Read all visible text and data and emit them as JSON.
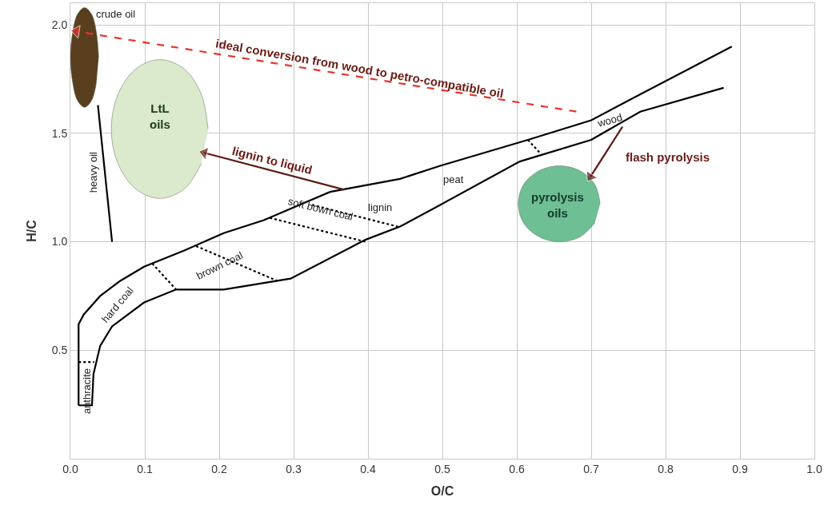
{
  "chart_data": {
    "type": "line",
    "xlabel": "O/C",
    "ylabel": "H/C",
    "xlim": [
      0,
      1.0
    ],
    "ylim": [
      0,
      2.1
    ],
    "xticks": [
      {
        "value": 0,
        "label": "0.0"
      },
      0.1,
      0.2,
      0.3,
      0.4,
      0.5,
      0.6,
      0.7,
      0.8,
      0.9,
      {
        "value": 1.0,
        "label": "1.0"
      }
    ],
    "yticks": [
      0.5,
      {
        "value": 1.0,
        "label": "1.0"
      },
      1.5,
      {
        "value": 2.0,
        "label": "2.0"
      }
    ],
    "grid": true,
    "series": [
      {
        "color": "#000000",
        "line_style": "solid",
        "x": [
          0.011,
          0.011,
          0.018,
          0.04,
          0.067,
          0.099,
          0.153,
          0.206,
          0.26,
          0.349,
          0.443,
          0.497,
          0.615,
          0.7,
          0.766,
          0.889
        ],
        "values": [
          0.246,
          0.62,
          0.665,
          0.75,
          0.82,
          0.885,
          0.96,
          1.04,
          1.1,
          1.23,
          1.29,
          1.35,
          1.47,
          1.56,
          1.68,
          1.9
        ]
      },
      {
        "color": "#000000",
        "line_style": "solid",
        "x": [
          0.011,
          0.029,
          0.031,
          0.04,
          0.056,
          0.099,
          0.142,
          0.206,
          0.278,
          0.296,
          0.397,
          0.443,
          0.497,
          0.604,
          0.7,
          0.766,
          0.878
        ],
        "values": [
          0.246,
          0.246,
          0.39,
          0.52,
          0.61,
          0.72,
          0.78,
          0.78,
          0.82,
          0.83,
          1.01,
          1.07,
          1.17,
          1.37,
          1.47,
          1.6,
          1.71
        ]
      },
      {
        "color": "#000000",
        "line_style": "solid",
        "x": [
          0.037,
          0.056
        ],
        "values": [
          1.63,
          1.0
        ]
      },
      {
        "color": "#000000",
        "line_style": "dotted",
        "x": [
          0.011,
          0.032
        ],
        "values": [
          0.445,
          0.445
        ]
      },
      {
        "color": "#000000",
        "line_style": "dotted",
        "x": [
          0.11,
          0.142
        ],
        "values": [
          0.9,
          0.78
        ]
      },
      {
        "color": "#000000",
        "line_style": "dotted",
        "x": [
          0.169,
          0.278
        ],
        "values": [
          0.98,
          0.82
        ]
      },
      {
        "color": "#000000",
        "line_style": "dotted",
        "x": [
          0.268,
          0.397
        ],
        "values": [
          1.11,
          1.0
        ]
      },
      {
        "color": "#000000",
        "line_style": "dotted",
        "x": [
          0.325,
          0.44
        ],
        "values": [
          1.17,
          1.07
        ]
      },
      {
        "color": "#000000",
        "line_style": "dotted",
        "x": [
          0.615,
          0.631
        ],
        "values": [
          1.47,
          1.41
        ]
      },
      {
        "type": "area",
        "color": "#5a3f1e",
        "x": [
          0.038,
          0.035,
          0.0285,
          0.019,
          0.0095,
          0.003,
          0,
          0.003,
          0.0095,
          0.019,
          0.0285,
          0.035
        ],
        "values": [
          1.85,
          1.965,
          2.049,
          2.08,
          2.049,
          1.965,
          1.85,
          1.735,
          1.651,
          1.62,
          1.651,
          1.735
        ]
      },
      {
        "type": "area",
        "color": "#dbe9cc",
        "x": [
          0.185,
          0.176,
          0.153,
          0.12,
          0.088,
          0.064,
          0.055,
          0.064,
          0.088,
          0.12,
          0.153,
          0.176
        ],
        "values": [
          1.52,
          1.68,
          1.797,
          1.84,
          1.797,
          1.68,
          1.52,
          1.36,
          1.243,
          1.2,
          1.243,
          1.36
        ]
      },
      {
        "type": "area",
        "color": "#6fbf94",
        "x": [
          0.712,
          0.705,
          0.685,
          0.657,
          0.63,
          0.609,
          0.602,
          0.609,
          0.63,
          0.657,
          0.685,
          0.705
        ],
        "values": [
          1.175,
          1.263,
          1.327,
          1.35,
          1.327,
          1.263,
          1.175,
          1.088,
          1.023,
          1.0,
          1.023,
          1.088
        ]
      },
      {
        "color": "#e8332a",
        "line_style": "dashed",
        "marker": "triangle",
        "x": [
          0.68,
          0.008
        ],
        "values": [
          1.6,
          1.97
        ]
      },
      {
        "color": "#5c1a14",
        "line_style": "solid",
        "marker": "triangle",
        "x": [
          0.368,
          0.18
        ],
        "values": [
          1.24,
          1.41
        ]
      },
      {
        "color": "#5c1a14",
        "line_style": "solid",
        "marker": "triangle",
        "x": [
          0.742,
          0.699
        ],
        "values": [
          1.53,
          1.3
        ]
      }
    ],
    "annotations": [
      "crude oil",
      "ideal conversion from wood to petro-compatible oil",
      "LtL\noils",
      "heavy oil",
      "lignin to liquid",
      "lignin",
      "soft bown coal",
      "peat",
      "wood",
      "flash pyrolysis",
      "pyrolysis\noils",
      "brown coal",
      "hard coal",
      "anthracite"
    ]
  }
}
